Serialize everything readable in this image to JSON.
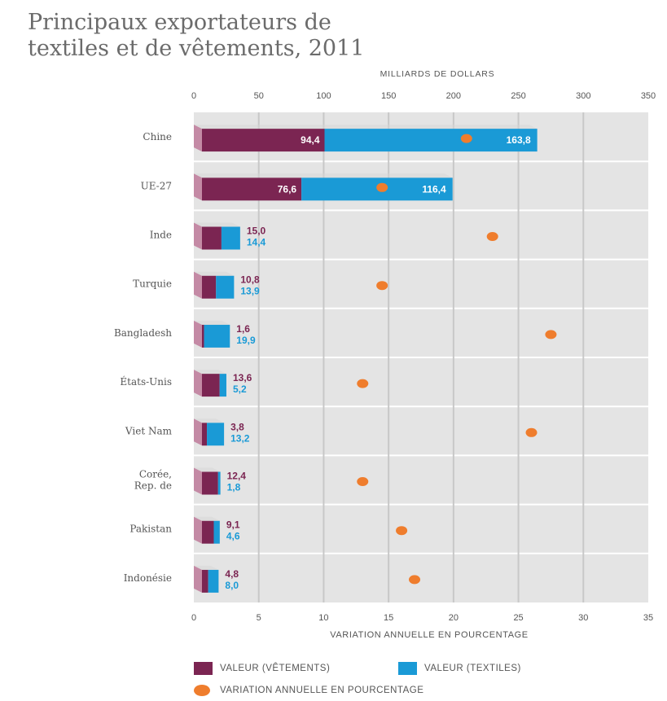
{
  "chart_data": {
    "type": "bar",
    "title": [
      "Principaux exportateurs de",
      "textiles et de vêtements, 2011"
    ],
    "top_axis": {
      "label": "MILLIARDS DE DOLLARS",
      "ticks": [
        "0",
        "50",
        "100",
        "150",
        "200",
        "250",
        "300",
        "350"
      ],
      "range": [
        0,
        350
      ]
    },
    "bottom_axis": {
      "label": "VARIATION ANNUELLE EN POURCENTAGE",
      "ticks": [
        "0",
        "5",
        "10",
        "15",
        "20",
        "25",
        "30",
        "35"
      ],
      "range": [
        0,
        35
      ]
    },
    "categories": [
      "Chine",
      "UE-27",
      "Inde",
      "Turquie",
      "Bangladesh",
      "États-Unis",
      "Viet Nam",
      "Corée,\nRep. de",
      "Pakistan",
      "Indonésie"
    ],
    "series": [
      {
        "name": "VALEUR (VÊTEMENTS)",
        "color": "#7b2552",
        "values": [
          94.4,
          76.6,
          15.0,
          10.8,
          1.6,
          13.6,
          3.8,
          12.4,
          9.1,
          4.8
        ],
        "labels": [
          "94,4",
          "76,6",
          "15,0",
          "10,8",
          "1,6",
          "13,6",
          "3,8",
          "12,4",
          "9,1",
          "4,8"
        ]
      },
      {
        "name": "VALEUR (TEXTILES)",
        "color": "#1a9ad6",
        "values": [
          163.8,
          116.4,
          14.4,
          13.9,
          19.9,
          5.2,
          13.2,
          1.8,
          4.6,
          8.0
        ],
        "labels": [
          "163,8",
          "116,4",
          "14,4",
          "13,9",
          "19,9",
          "5,2",
          "13,2",
          "1,8",
          "4,6",
          "8,0"
        ]
      },
      {
        "name": "VARIATION ANNUELLE EN POURCENTAGE",
        "color": "#ef7d2d",
        "values": [
          21,
          14.5,
          23,
          14.5,
          27.5,
          13,
          26,
          13,
          16,
          17
        ]
      }
    ],
    "colors": {
      "background": "#e4e4e4",
      "gridline": "#c8c8c8",
      "bar_face": "#c48aa5",
      "text": "#555555"
    }
  }
}
